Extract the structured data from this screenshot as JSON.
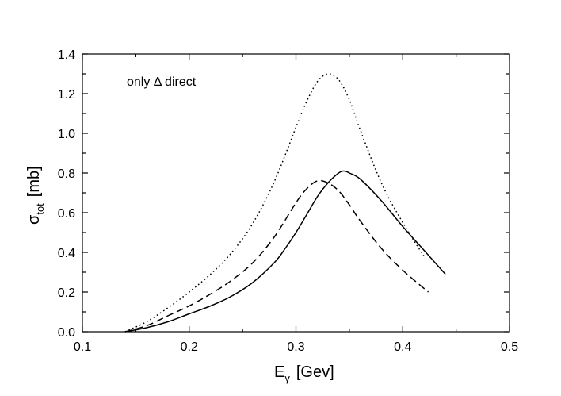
{
  "chart_data": {
    "type": "line",
    "title": "",
    "annotation": "only Δ direct",
    "xlabel": {
      "main": "E",
      "sub": "γ",
      "unit": "[Gev]"
    },
    "ylabel": {
      "main": "σ",
      "sub": "tot",
      "unit": "[mb]"
    },
    "xlim": [
      0.1,
      0.5
    ],
    "ylim": [
      0.0,
      1.4
    ],
    "xticks": [
      "0.1",
      "0.2",
      "0.3",
      "0.4",
      "0.5"
    ],
    "yticks": [
      "0.0",
      "0.2",
      "0.4",
      "0.6",
      "0.8",
      "1.0",
      "1.2",
      "1.4"
    ],
    "grid": false,
    "colors": {
      "line": "#000000",
      "background": "#ffffff"
    },
    "series": [
      {
        "style": "dotted",
        "x": [
          0.14,
          0.16,
          0.18,
          0.2,
          0.22,
          0.24,
          0.26,
          0.28,
          0.3,
          0.31,
          0.32,
          0.33,
          0.34,
          0.35,
          0.36,
          0.38,
          0.4,
          0.42
        ],
        "y": [
          0.0,
          0.05,
          0.12,
          0.2,
          0.29,
          0.4,
          0.55,
          0.76,
          1.03,
          1.16,
          1.26,
          1.3,
          1.27,
          1.17,
          1.02,
          0.75,
          0.55,
          0.38
        ]
      },
      {
        "style": "dashed",
        "x": [
          0.14,
          0.16,
          0.18,
          0.2,
          0.22,
          0.24,
          0.26,
          0.28,
          0.3,
          0.31,
          0.32,
          0.33,
          0.34,
          0.35,
          0.36,
          0.38,
          0.4,
          0.424
        ],
        "y": [
          0.0,
          0.03,
          0.08,
          0.13,
          0.19,
          0.26,
          0.35,
          0.48,
          0.65,
          0.72,
          0.76,
          0.75,
          0.71,
          0.64,
          0.56,
          0.42,
          0.31,
          0.2
        ]
      },
      {
        "style": "solid",
        "x": [
          0.14,
          0.16,
          0.18,
          0.2,
          0.22,
          0.24,
          0.26,
          0.28,
          0.29,
          0.3,
          0.31,
          0.32,
          0.33,
          0.34,
          0.345,
          0.35,
          0.36,
          0.38,
          0.4,
          0.42,
          0.44
        ],
        "y": [
          0.0,
          0.02,
          0.05,
          0.09,
          0.13,
          0.18,
          0.25,
          0.35,
          0.42,
          0.5,
          0.59,
          0.68,
          0.75,
          0.8,
          0.81,
          0.8,
          0.77,
          0.66,
          0.53,
          0.41,
          0.29
        ]
      }
    ]
  }
}
